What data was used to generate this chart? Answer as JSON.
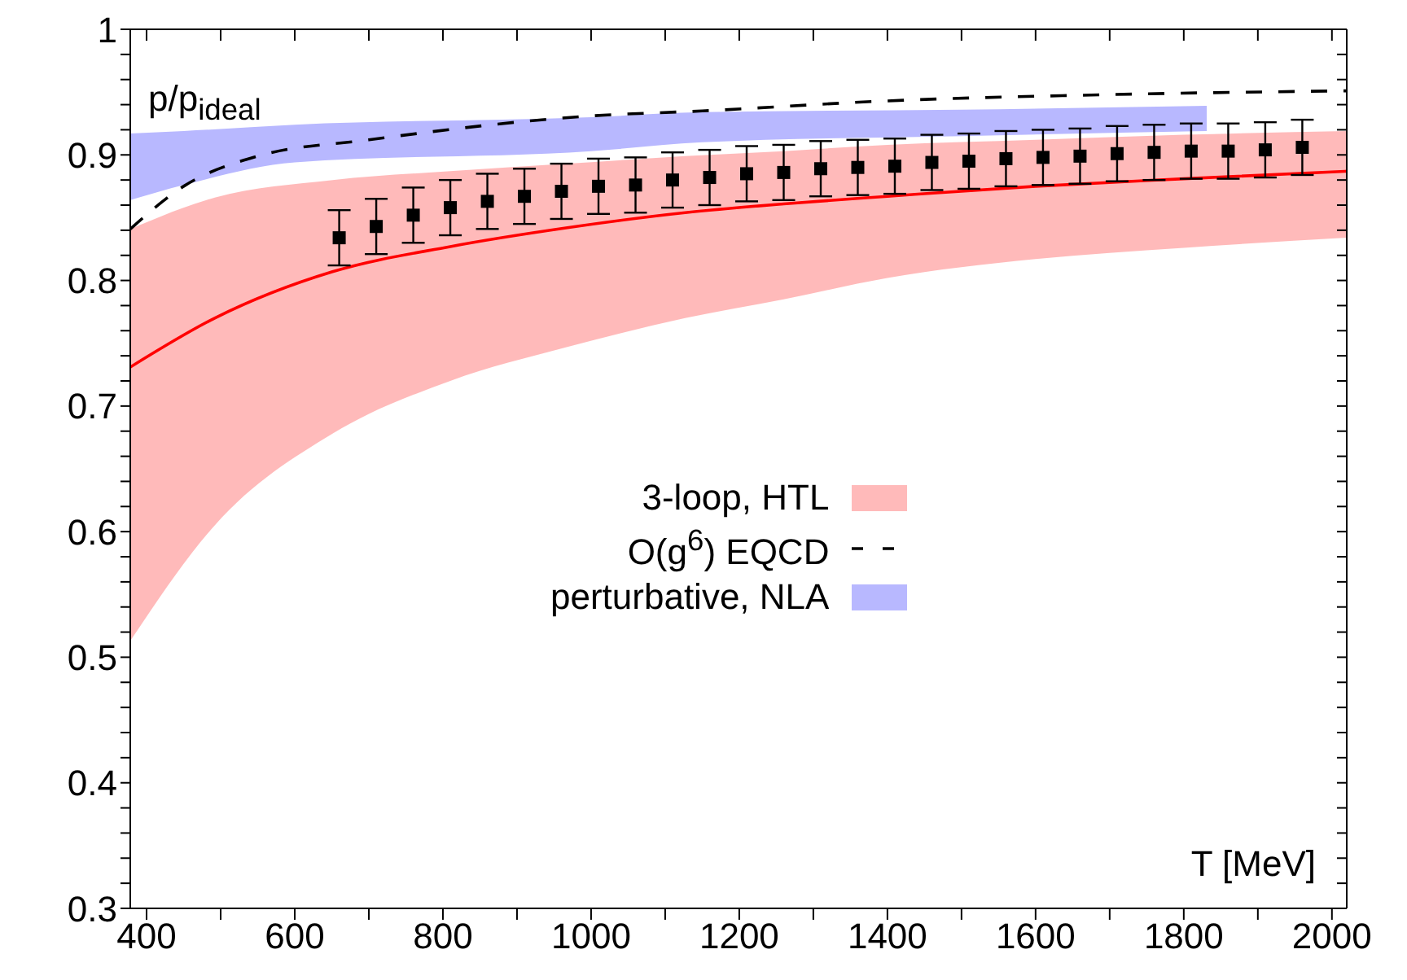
{
  "chart_data": {
    "type": "line",
    "xlabel": "T [MeV]",
    "ylabel": "p/p$_{ideal}$",
    "xlim": [
      378,
      2020
    ],
    "xticks": [
      400,
      {
        "value": 500,
        "label": null
      },
      600,
      {
        "value": 700,
        "label": null
      },
      800,
      {
        "value": 900,
        "label": null
      },
      1000,
      {
        "value": 1100,
        "label": null
      },
      1200,
      {
        "value": 1300,
        "label": null
      },
      1400,
      {
        "value": 1500,
        "label": null
      },
      1600,
      {
        "value": 1700,
        "label": null
      },
      1800,
      {
        "value": 1900,
        "label": null
      },
      2000
    ],
    "ylim": [
      0.3,
      1
    ],
    "yticks": [
      0.3,
      {
        "value": 0.32,
        "label": null
      },
      {
        "value": 0.34,
        "label": null
      },
      {
        "value": 0.36,
        "label": null
      },
      {
        "value": 0.38,
        "label": null
      },
      0.4,
      {
        "value": 0.42,
        "label": null
      },
      {
        "value": 0.44,
        "label": null
      },
      {
        "value": 0.46,
        "label": null
      },
      {
        "value": 0.48,
        "label": null
      },
      0.5,
      {
        "value": 0.52,
        "label": null
      },
      {
        "value": 0.54,
        "label": null
      },
      {
        "value": 0.56,
        "label": null
      },
      {
        "value": 0.58,
        "label": null
      },
      0.6,
      {
        "value": 0.62,
        "label": null
      },
      {
        "value": 0.64,
        "label": null
      },
      {
        "value": 0.66,
        "label": null
      },
      {
        "value": 0.68,
        "label": null
      },
      0.7,
      {
        "value": 0.72,
        "label": null
      },
      {
        "value": 0.74,
        "label": null
      },
      {
        "value": 0.76,
        "label": null
      },
      {
        "value": 0.78,
        "label": null
      },
      0.8,
      {
        "value": 0.82,
        "label": null
      },
      {
        "value": 0.84,
        "label": null
      },
      {
        "value": 0.86,
        "label": null
      },
      {
        "value": 0.88,
        "label": null
      },
      0.9,
      {
        "value": 0.92,
        "label": null
      },
      {
        "value": 0.94,
        "label": null
      },
      {
        "value": 0.96,
        "label": null
      },
      {
        "value": 0.98,
        "label": null
      },
      1
    ],
    "grid": false,
    "legend": "center",
    "series": [
      {
        "name": "3-loop, HTL",
        "color": "#ff0000",
        "line_style": "solid",
        "marker": "none",
        "x": [
          378,
          492,
          651,
          810,
          968,
          1127,
          1260,
          1400,
          1600,
          1800,
          2020
        ],
        "values": [
          0.731,
          0.77,
          0.807,
          0.827,
          0.842,
          0.854,
          0.861,
          0.867,
          0.875,
          0.881,
          0.887
        ],
        "lower": [
          0.513,
          0.605,
          0.678,
          0.72,
          0.747,
          0.77,
          0.785,
          0.802,
          0.817,
          0.826,
          0.834
        ],
        "upper": [
          0.841,
          0.866,
          0.88,
          0.887,
          0.893,
          0.899,
          0.903,
          0.908,
          0.912,
          0.916,
          0.919
        ]
      },
      {
        "name": "O(g$^{6}$) EQCD",
        "type": "line",
        "color": "#000000",
        "line_style": "dashed",
        "marker": "none",
        "x": [
          378,
          450,
          550,
          700,
          1000,
          1150,
          1400,
          1700,
          2020
        ],
        "values": [
          0.841,
          0.875,
          0.899,
          0.912,
          0.931,
          0.935,
          0.943,
          0.948,
          0.951
        ]
      },
      {
        "name": "perturbative, NLA",
        "type": "area",
        "color": "#b8b8ff",
        "x": [
          378,
          450,
          600,
          1000,
          1150,
          1500,
          1831
        ],
        "values": [
          null,
          null,
          null,
          null,
          null,
          null,
          null
        ],
        "lower": [
          0.864,
          0.876,
          0.894,
          0.903,
          0.91,
          0.915,
          0.919
        ],
        "upper": [
          0.917,
          0.919,
          0.924,
          0.93,
          0.934,
          0.936,
          0.939
        ]
      },
      {
        "type": "scatter",
        "color": "#000000",
        "marker": "square",
        "x": [
          660,
          710,
          760,
          810,
          860,
          910,
          960,
          1010,
          1060,
          1110,
          1160,
          1210,
          1260,
          1310,
          1360,
          1410,
          1460,
          1510,
          1560,
          1610,
          1660,
          1710,
          1760,
          1810,
          1860,
          1910,
          1960
        ],
        "values": [
          0.834,
          0.843,
          0.852,
          0.858,
          0.863,
          0.867,
          0.871,
          0.875,
          0.876,
          0.88,
          0.882,
          0.885,
          0.886,
          0.889,
          0.89,
          0.891,
          0.894,
          0.895,
          0.897,
          0.898,
          0.899,
          0.901,
          0.902,
          0.903,
          0.903,
          0.904,
          0.906
        ],
        "errors": [
          0.022,
          0.022,
          0.022,
          0.022,
          0.022,
          0.022,
          0.022,
          0.022,
          0.022,
          0.022,
          0.022,
          0.022,
          0.022,
          0.022,
          0.022,
          0.022,
          0.022,
          0.022,
          0.022,
          0.022,
          0.022,
          0.022,
          0.022,
          0.022,
          0.022,
          0.022,
          0.022
        ]
      }
    ]
  }
}
